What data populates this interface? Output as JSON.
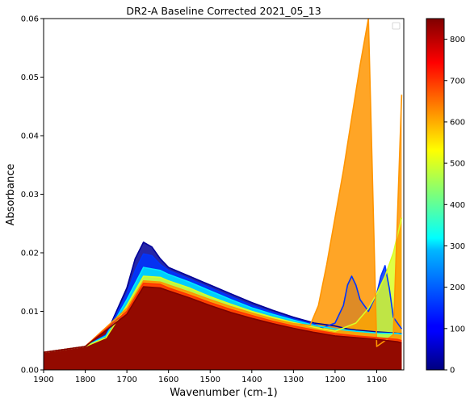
{
  "chart_data": {
    "type": "line",
    "title": "DR2-A Baseline Corrected 2021_05_13",
    "xlabel": "Wavenumber (cm-1)",
    "ylabel": "Absorbance",
    "xlim": [
      1900,
      1035
    ],
    "ylim": [
      0,
      0.06
    ],
    "x_reversed": true,
    "x_ticks": [
      "1900",
      "1800",
      "1700",
      "1600",
      "1500",
      "1400",
      "1300",
      "1200",
      "1100"
    ],
    "y_ticks": [
      "0.00",
      "0.01",
      "0.02",
      "0.03",
      "0.04",
      "0.05",
      "0.06"
    ],
    "grid": false,
    "legend": "top-right (empty)",
    "colorbar": {
      "colormap": "jet",
      "range": [
        0,
        850
      ],
      "ticks": [
        "0",
        "100",
        "200",
        "300",
        "400",
        "500",
        "600",
        "700",
        "800"
      ]
    },
    "series_count_note": "",
    "series": [
      {
        "color_value": 20,
        "x": [
          1900,
          1800,
          1750,
          1700,
          1680,
          1660,
          1640,
          1620,
          1600,
          1550,
          1500,
          1450,
          1400,
          1350,
          1300,
          1250,
          1200,
          1170,
          1150,
          1120,
          1100,
          1080,
          1060,
          1040
        ],
        "y": [
          0.003,
          0.004,
          0.006,
          0.014,
          0.019,
          0.0218,
          0.021,
          0.019,
          0.0175,
          0.016,
          0.0145,
          0.013,
          0.0115,
          0.0102,
          0.009,
          0.008,
          0.0075,
          0.007,
          0.0068,
          0.0066,
          0.0065,
          0.0064,
          0.0063,
          0.0062
        ]
      },
      {
        "color_value": 150,
        "x": [
          1900,
          1800,
          1750,
          1700,
          1680,
          1660,
          1640,
          1620,
          1600,
          1550,
          1500,
          1450,
          1400,
          1350,
          1300,
          1250,
          1230,
          1200,
          1180,
          1170,
          1160,
          1150,
          1140,
          1120,
          1100,
          1090,
          1080,
          1070,
          1060,
          1040
        ],
        "y": [
          0.003,
          0.004,
          0.006,
          0.013,
          0.017,
          0.0198,
          0.0195,
          0.018,
          0.017,
          0.0155,
          0.014,
          0.0125,
          0.011,
          0.0098,
          0.0087,
          0.0078,
          0.0072,
          0.008,
          0.011,
          0.0145,
          0.016,
          0.0145,
          0.012,
          0.01,
          0.013,
          0.016,
          0.0178,
          0.014,
          0.009,
          0.007
        ]
      },
      {
        "color_value": 300,
        "x": [
          1900,
          1800,
          1750,
          1700,
          1660,
          1620,
          1600,
          1550,
          1500,
          1450,
          1400,
          1350,
          1300,
          1250,
          1200,
          1150,
          1100,
          1050,
          1040
        ],
        "y": [
          0.003,
          0.004,
          0.0058,
          0.012,
          0.0175,
          0.017,
          0.0163,
          0.015,
          0.0135,
          0.012,
          0.0106,
          0.0095,
          0.0085,
          0.0076,
          0.007,
          0.0066,
          0.0063,
          0.0062,
          0.0061
        ]
      },
      {
        "color_value": 500,
        "x": [
          1900,
          1800,
          1750,
          1700,
          1660,
          1620,
          1600,
          1550,
          1500,
          1450,
          1400,
          1350,
          1300,
          1250,
          1200,
          1150,
          1120,
          1100,
          1080,
          1060,
          1040
        ],
        "y": [
          0.003,
          0.004,
          0.0055,
          0.011,
          0.016,
          0.0158,
          0.0152,
          0.014,
          0.0125,
          0.0112,
          0.01,
          0.009,
          0.0081,
          0.0073,
          0.0066,
          0.008,
          0.0105,
          0.013,
          0.016,
          0.02,
          0.026
        ]
      },
      {
        "color_value": 620,
        "x": [
          1900,
          1800,
          1700,
          1660,
          1620,
          1600,
          1550,
          1500,
          1450,
          1400,
          1350,
          1300,
          1260,
          1240,
          1220,
          1200,
          1180,
          1160,
          1140,
          1120,
          1100,
          1080,
          1060,
          1040
        ],
        "y": [
          0.003,
          0.004,
          0.0105,
          0.0152,
          0.015,
          0.0145,
          0.0133,
          0.012,
          0.0108,
          0.0097,
          0.0087,
          0.0079,
          0.0076,
          0.011,
          0.018,
          0.026,
          0.034,
          0.043,
          0.052,
          0.06,
          0.004,
          0.005,
          0.006,
          0.047
        ]
      },
      {
        "color_value": 700,
        "x": [
          1900,
          1800,
          1700,
          1660,
          1620,
          1600,
          1550,
          1500,
          1450,
          1400,
          1350,
          1300,
          1250,
          1200,
          1150,
          1100,
          1050,
          1040
        ],
        "y": [
          0.003,
          0.004,
          0.01,
          0.0148,
          0.0146,
          0.014,
          0.0128,
          0.0115,
          0.0103,
          0.0093,
          0.0083,
          0.0075,
          0.0068,
          0.0062,
          0.0058,
          0.0055,
          0.0052,
          0.005
        ]
      },
      {
        "color_value": 850,
        "x": [
          1900,
          1800,
          1700,
          1660,
          1620,
          1600,
          1550,
          1500,
          1450,
          1400,
          1350,
          1300,
          1250,
          1200,
          1150,
          1100,
          1050,
          1040
        ],
        "y": [
          0.003,
          0.004,
          0.0095,
          0.0142,
          0.014,
          0.0135,
          0.0123,
          0.011,
          0.0098,
          0.0088,
          0.0079,
          0.0071,
          0.0064,
          0.0058,
          0.0055,
          0.0052,
          0.0048,
          0.0046
        ]
      }
    ]
  }
}
